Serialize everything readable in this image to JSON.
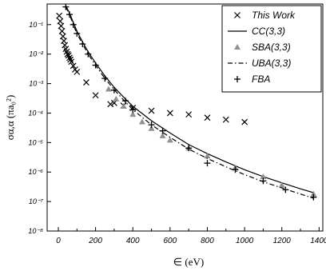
{
  "chart_data": {
    "type": "scatter",
    "title": "",
    "xlabel": "∈ (eV)",
    "ylabel": "σα,α (πa₀²)",
    "xlim": [
      -60,
      1420
    ],
    "ylim": [
      1e-08,
      0.5
    ],
    "yscale": "log",
    "x_ticks": [
      0,
      200,
      400,
      600,
      800,
      1000,
      1200,
      1400
    ],
    "y_ticks": [
      {
        "value": 1e-08,
        "label": "10⁻⁸"
      },
      {
        "value": 1e-07,
        "label": "10⁻⁷"
      },
      {
        "value": 1e-06,
        "label": "10⁻⁶"
      },
      {
        "value": 1e-05,
        "label": "10⁻⁵"
      },
      {
        "value": 0.0001,
        "label": "10⁻⁴"
      },
      {
        "value": 0.001,
        "label": "10⁻³"
      },
      {
        "value": 0.01,
        "label": "10⁻²"
      },
      {
        "value": 0.1,
        "label": "10⁻¹"
      }
    ],
    "legend_position": "top-right",
    "series": [
      {
        "name": "This Work",
        "style": "x-marker",
        "color": "#000000",
        "x": [
          5,
          10,
          15,
          20,
          25,
          30,
          35,
          40,
          45,
          50,
          55,
          60,
          65,
          70,
          80,
          90,
          100,
          150,
          200,
          280,
          300,
          350,
          400,
          500,
          600,
          700,
          800,
          900,
          1000
        ],
        "y": [
          0.2,
          0.13,
          0.09,
          0.06,
          0.04,
          0.028,
          0.02,
          0.015,
          0.012,
          0.01,
          0.009,
          0.0075,
          0.0065,
          0.0055,
          0.004,
          0.003,
          0.0025,
          0.0011,
          0.0004,
          0.0002,
          0.00022,
          0.00018,
          0.00015,
          0.00012,
          0.0001,
          9e-05,
          7e-05,
          6e-05,
          5e-05
        ]
      },
      {
        "name": "CC(3,3)",
        "style": "solid-line",
        "color": "#000000",
        "x": [
          40,
          50,
          60,
          80,
          100,
          130,
          160,
          200,
          250,
          300,
          350,
          400,
          500,
          600,
          700,
          800,
          900,
          1000,
          1100,
          1200,
          1300,
          1370
        ],
        "y": [
          0.45,
          0.33,
          0.25,
          0.12,
          0.06,
          0.026,
          0.012,
          0.005,
          0.0018,
          0.00075,
          0.00035,
          0.00017,
          5.5e-05,
          2.1e-05,
          8.5e-06,
          4.2e-06,
          2.2e-06,
          1.2e-06,
          7e-07,
          4.3e-07,
          2.7e-07,
          2e-07
        ]
      },
      {
        "name": "SBA(3,3)",
        "style": "triangle-marker",
        "color": "#909090",
        "x": [
          270,
          310,
          350,
          400,
          450,
          500,
          560,
          600,
          700,
          800,
          950,
          1100,
          1200,
          1370
        ],
        "y": [
          0.00065,
          0.0003,
          0.00017,
          9e-05,
          5e-05,
          3e-05,
          1.7e-05,
          1.2e-05,
          6.5e-06,
          3.5e-06,
          1.4e-06,
          7e-07,
          3.6e-07,
          1.8e-07
        ]
      },
      {
        "name": "UBA(3,3)",
        "style": "dash-dot-line",
        "color": "#000000",
        "x": [
          40,
          50,
          60,
          80,
          100,
          130,
          160,
          200,
          250,
          300,
          350,
          400,
          500,
          600,
          700,
          800,
          900,
          1000,
          1100,
          1200,
          1300,
          1370
        ],
        "y": [
          0.4,
          0.3,
          0.22,
          0.1,
          0.05,
          0.022,
          0.01,
          0.0042,
          0.0015,
          0.00062,
          0.00028,
          0.00013,
          4e-05,
          1.5e-05,
          6e-06,
          2.9e-06,
          1.5e-06,
          8.2e-07,
          4.7e-07,
          2.9e-07,
          1.8e-07,
          1.3e-07
        ]
      },
      {
        "name": "FBA",
        "style": "plus-marker",
        "color": "#000000",
        "x": [
          40,
          60,
          80,
          100,
          130,
          160,
          200,
          250,
          300,
          360,
          400,
          500,
          560,
          700,
          800,
          950,
          1100,
          1220,
          1370
        ],
        "y": [
          0.4,
          0.22,
          0.1,
          0.05,
          0.022,
          0.01,
          0.0042,
          0.0015,
          0.0006,
          0.00026,
          0.00013,
          4e-05,
          2.5e-05,
          6.5e-06,
          2e-06,
          1.2e-06,
          5e-07,
          2.5e-07,
          1.4e-07
        ]
      }
    ]
  }
}
